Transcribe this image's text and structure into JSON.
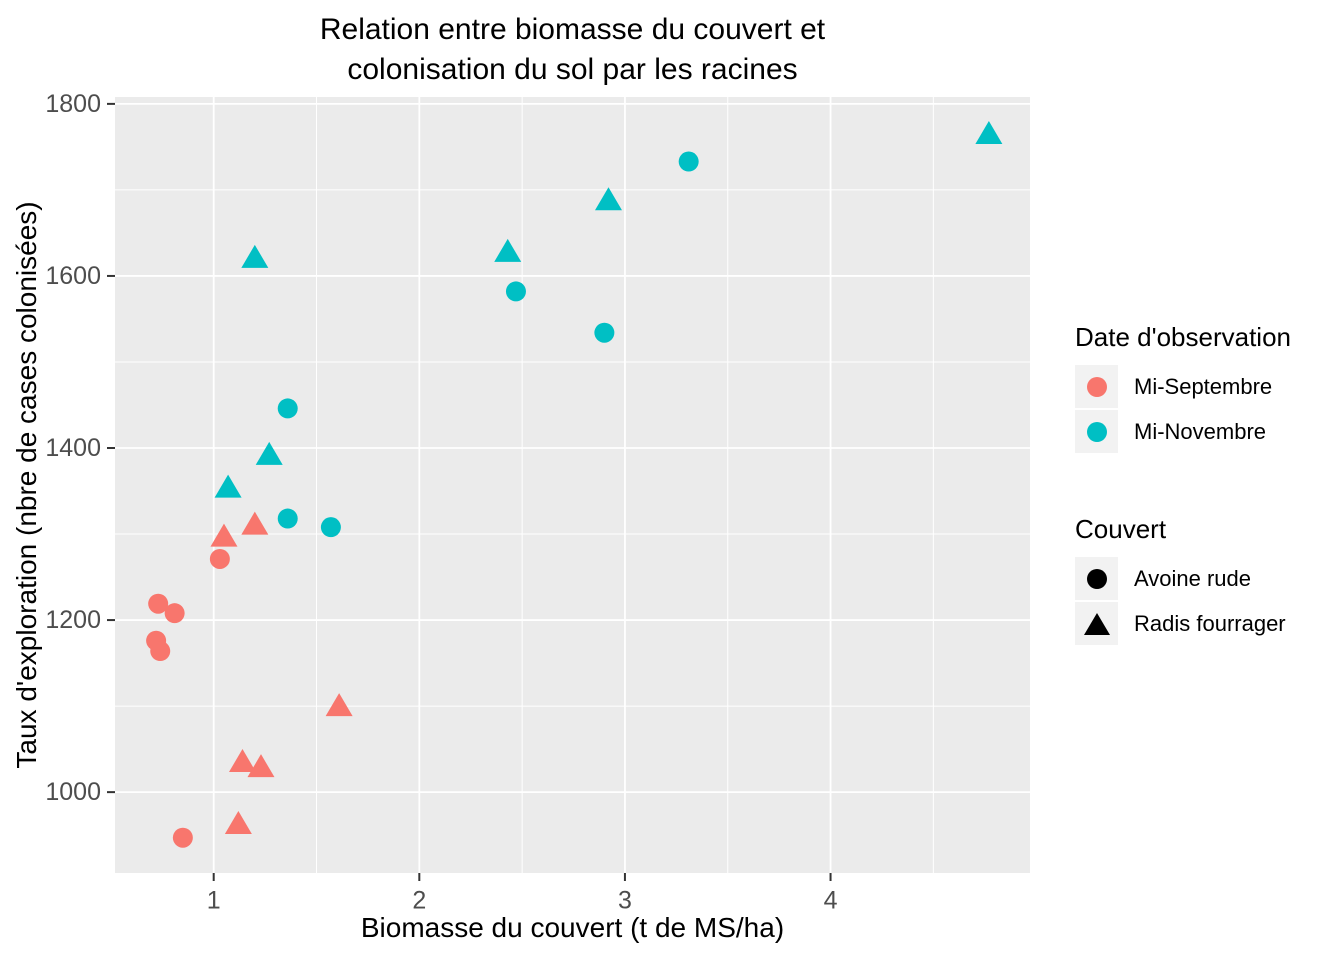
{
  "title": {
    "line1": "Relation entre biomasse du couvert et",
    "line2": "colonisation du sol par les racines"
  },
  "axes": {
    "x_label": "Biomasse du couvert (t de MS/ha)",
    "y_label": "Taux d'exploration (nbre de cases colonisées)"
  },
  "legend_date": {
    "title": "Date d'observation",
    "items": [
      {
        "label": "Mi-Septembre",
        "color": "#F8766D",
        "shape": "circle"
      },
      {
        "label": "Mi-Novembre",
        "color": "#00BFC4",
        "shape": "circle"
      }
    ]
  },
  "legend_couvert": {
    "title": "Couvert",
    "items": [
      {
        "label": "Avoine rude",
        "color": "#000000",
        "shape": "circle"
      },
      {
        "label": "Radis fourrager",
        "color": "#000000",
        "shape": "triangle"
      }
    ]
  },
  "colors": {
    "salmon": "#F8766D",
    "teal": "#00BFC4",
    "panel_bg": "#EBEBEB",
    "grid": "#FFFFFF",
    "axis_text": "#4D4D4D",
    "tick": "#333333",
    "legend_key_bg": "#F2F2F2"
  },
  "chart_data": {
    "type": "scatter",
    "title": "Relation entre biomasse du couvert et colonisation du sol par les racines",
    "xlabel": "Biomasse du couvert (t de MS/ha)",
    "ylabel": "Taux d'exploration (nbre de cases colonisées)",
    "xlim": [
      0.52,
      4.97
    ],
    "ylim": [
      906,
      1808
    ],
    "x_ticks": [
      1,
      2,
      3,
      4
    ],
    "y_ticks": [
      1000,
      1200,
      1400,
      1600,
      1800
    ],
    "x_minor_ticks": [
      1.5,
      2.5,
      3.5,
      4.5
    ],
    "y_minor_ticks": [
      1100,
      1300,
      1500,
      1700
    ],
    "grid": true,
    "legend_position": "right",
    "series": [
      {
        "id": "sept-avoine",
        "date": "Mi-Septembre",
        "couvert": "Avoine rude",
        "shape": "circle",
        "color": "#F8766D",
        "points": [
          [
            1.03,
            1271
          ],
          [
            0.73,
            1219
          ],
          [
            0.81,
            1208
          ],
          [
            0.72,
            1176
          ],
          [
            0.74,
            1164
          ],
          [
            0.85,
            947
          ]
        ]
      },
      {
        "id": "sept-radis",
        "date": "Mi-Septembre",
        "couvert": "Radis fourrager",
        "shape": "triangle",
        "color": "#F8766D",
        "points": [
          [
            1.2,
            1311
          ],
          [
            1.05,
            1297
          ],
          [
            1.61,
            1100
          ],
          [
            1.14,
            1035
          ],
          [
            1.23,
            1029
          ],
          [
            1.12,
            963
          ]
        ]
      },
      {
        "id": "nov-avoine",
        "date": "Mi-Novembre",
        "couvert": "Avoine rude",
        "shape": "circle",
        "color": "#00BFC4",
        "points": [
          [
            3.31,
            1733
          ],
          [
            2.47,
            1582
          ],
          [
            2.9,
            1534
          ],
          [
            1.36,
            1446
          ],
          [
            1.36,
            1318
          ],
          [
            1.57,
            1308
          ]
        ]
      },
      {
        "id": "nov-radis",
        "date": "Mi-Novembre",
        "couvert": "Radis fourrager",
        "shape": "triangle",
        "color": "#00BFC4",
        "points": [
          [
            4.77,
            1765
          ],
          [
            2.92,
            1688
          ],
          [
            2.43,
            1628
          ],
          [
            1.2,
            1621
          ],
          [
            1.27,
            1392
          ],
          [
            1.07,
            1354
          ]
        ]
      }
    ]
  }
}
